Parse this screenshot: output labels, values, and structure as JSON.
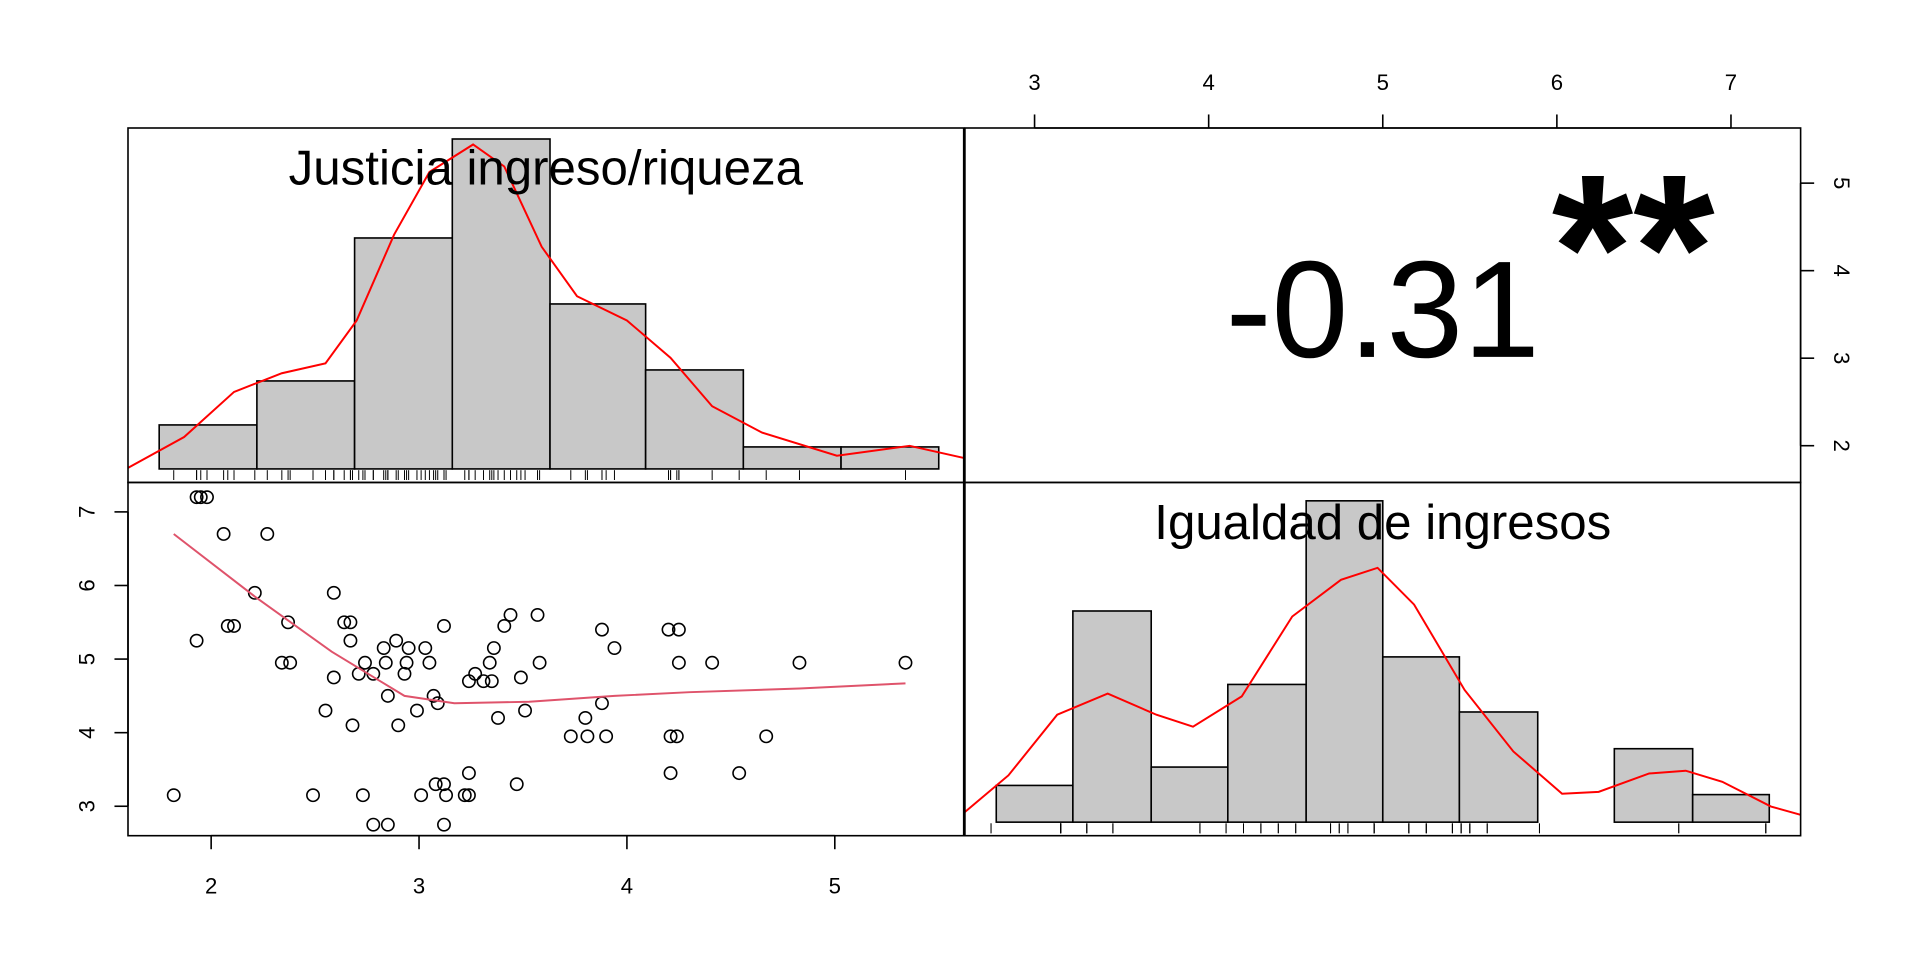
{
  "chart_data": [
    {
      "type": "histogram",
      "title": "Justicia ingreso/riqueza",
      "bins": [
        1.75,
        2.22,
        2.69,
        3.16,
        3.63,
        4.09,
        4.56,
        5.03,
        5.5
      ],
      "counts": [
        4,
        8,
        21,
        30,
        15,
        9,
        2,
        2
      ],
      "color": "#c8c8c8",
      "xlim": [
        1.6,
        5.62
      ],
      "ylim": [
        0,
        31
      ],
      "density": {
        "color": "#ff0000",
        "x": [
          1.6,
          1.87,
          2.11,
          2.34,
          2.55,
          2.7,
          2.88,
          3.05,
          3.26,
          3.41,
          3.59,
          3.76,
          4.0,
          4.21,
          4.41,
          4.65,
          5.01,
          5.36,
          5.62
        ],
        "values": [
          0.1,
          2.9,
          7.0,
          8.7,
          9.6,
          13.5,
          21.3,
          27,
          29.5,
          27.5,
          20.2,
          15.7,
          13.5,
          10.1,
          5.7,
          3.3,
          1.2,
          2.1,
          1.0
        ]
      }
    },
    {
      "type": "correlation",
      "value": -0.31,
      "stars": "**",
      "star_color": "#df536b",
      "xlim": [
        2.6,
        7.4
      ],
      "xticks": [
        3,
        4,
        5,
        6,
        7
      ],
      "ylim": [
        1.58,
        5.63
      ],
      "yticks": [
        2,
        3,
        4,
        5
      ]
    },
    {
      "type": "scatter",
      "x": [
        1.82,
        1.93,
        1.95,
        1.98,
        1.93,
        2.06,
        2.27,
        2.08,
        2.11,
        2.21,
        2.37,
        2.34,
        2.38,
        2.49,
        2.55,
        2.59,
        2.59,
        2.64,
        2.67,
        2.67,
        2.68,
        2.71,
        2.73,
        2.74,
        2.78,
        2.78,
        2.85,
        2.83,
        2.84,
        2.85,
        2.89,
        2.9,
        2.93,
        2.94,
        2.95,
        2.99,
        3.01,
        3.03,
        3.05,
        3.07,
        3.08,
        3.09,
        3.12,
        3.12,
        3.12,
        3.13,
        3.22,
        3.24,
        3.24,
        3.24,
        3.27,
        3.31,
        3.34,
        3.35,
        3.36,
        3.38,
        3.41,
        3.44,
        3.47,
        3.49,
        3.51,
        3.57,
        3.58,
        3.73,
        3.8,
        3.81,
        3.88,
        3.88,
        3.9,
        3.94,
        4.2,
        4.25,
        4.21,
        4.24,
        4.21,
        4.25,
        4.41,
        4.54,
        4.67,
        4.83,
        5.34
      ],
      "values": [
        3.15,
        7.2,
        7.2,
        7.2,
        5.25,
        6.7,
        6.7,
        5.45,
        5.45,
        5.9,
        5.5,
        4.95,
        4.95,
        3.15,
        4.3,
        5.9,
        4.75,
        5.5,
        5.5,
        5.25,
        4.1,
        4.8,
        3.15,
        4.95,
        4.8,
        2.75,
        2.75,
        5.15,
        4.95,
        4.5,
        5.25,
        4.1,
        4.8,
        4.95,
        5.15,
        4.3,
        3.15,
        5.15,
        4.95,
        4.5,
        3.3,
        4.4,
        5.45,
        2.75,
        3.3,
        3.15,
        3.15,
        3.15,
        3.45,
        4.7,
        4.8,
        4.7,
        4.95,
        4.7,
        5.15,
        4.2,
        5.45,
        5.6,
        3.3,
        4.75,
        4.3,
        5.6,
        4.95,
        3.95,
        4.2,
        3.95,
        5.4,
        4.4,
        3.95,
        5.15,
        5.4,
        5.4,
        3.95,
        3.95,
        3.45,
        4.95,
        4.95,
        3.45,
        3.95,
        4.95,
        4.95
      ],
      "xlim": [
        1.6,
        5.62
      ],
      "xticks": [
        2,
        3,
        4,
        5
      ],
      "ylim": [
        2.6,
        7.4
      ],
      "yticks": [
        3,
        4,
        5,
        6,
        7
      ],
      "smooth": {
        "color": "#df536b",
        "x": [
          1.82,
          2.21,
          2.58,
          2.93,
          3.17,
          3.53,
          3.94,
          4.3,
          4.83,
          5.34
        ],
        "values": [
          6.7,
          5.85,
          5.1,
          4.5,
          4.4,
          4.42,
          4.5,
          4.55,
          4.6,
          4.67
        ]
      }
    },
    {
      "type": "histogram",
      "title": "Igualdad de ingresos",
      "bins": [
        2.78,
        3.22,
        3.67,
        4.11,
        4.56,
        5,
        5.44,
        5.89,
        6.33,
        6.78,
        7.22
      ],
      "counts": [
        4,
        23,
        6,
        15,
        35,
        18,
        12,
        0,
        8,
        3
      ],
      "color": "#c8c8c8",
      "xlim": [
        2.6,
        7.4
      ],
      "ylim": [
        0,
        37
      ],
      "density": {
        "color": "#ff0000",
        "x": [
          2.6,
          2.85,
          3.13,
          3.42,
          3.7,
          3.91,
          4.19,
          4.48,
          4.76,
          4.97,
          5.18,
          5.47,
          5.75,
          6.03,
          6.24,
          6.53,
          6.74,
          6.95,
          7.23,
          7.4
        ],
        "values": [
          1.1,
          5.1,
          11.7,
          14,
          11.7,
          10.4,
          13.7,
          22.4,
          26.4,
          27.7,
          23.7,
          14.4,
          7.7,
          3.1,
          3.3,
          5.3,
          5.6,
          4.4,
          1.7,
          0.8
        ]
      }
    }
  ]
}
